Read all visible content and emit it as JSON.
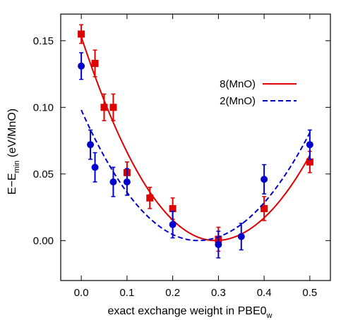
{
  "chart_data": {
    "type": "scatter",
    "xlabel": "exact exchange weight in PBE0",
    "xlabel_sub": "w",
    "ylabel": "E−E",
    "ylabel_sub": "min",
    "ylabel_unit": " (eV/MnO)",
    "xlim": [
      -0.045,
      0.545
    ],
    "ylim": [
      -0.03,
      0.17
    ],
    "xticks": [
      0.0,
      0.1,
      0.2,
      0.3,
      0.4,
      0.5
    ],
    "yticks": [
      0.0,
      0.05,
      0.1,
      0.15
    ],
    "xtick_labels": [
      "0.0",
      "0.1",
      "0.2",
      "0.3",
      "0.4",
      "0.5"
    ],
    "ytick_labels": [
      "0.00",
      "0.05",
      "0.10",
      "0.15"
    ],
    "grid": false,
    "legend_position": "top-right",
    "series": [
      {
        "name": "8(MnO)",
        "color": "#dd0000",
        "marker": "square",
        "fit_line": "solid",
        "points": [
          {
            "x": 0.0,
            "y": 0.155,
            "err": 0.007
          },
          {
            "x": 0.03,
            "y": 0.133,
            "err": 0.01
          },
          {
            "x": 0.05,
            "y": 0.1,
            "err": 0.01
          },
          {
            "x": 0.07,
            "y": 0.1,
            "err": 0.01
          },
          {
            "x": 0.1,
            "y": 0.051,
            "err": 0.008
          },
          {
            "x": 0.15,
            "y": 0.032,
            "err": 0.008
          },
          {
            "x": 0.2,
            "y": 0.024,
            "err": 0.008
          },
          {
            "x": 0.3,
            "y": 0.001,
            "err": 0.009
          },
          {
            "x": 0.4,
            "y": 0.024,
            "err": 0.009
          },
          {
            "x": 0.5,
            "y": 0.059,
            "err": 0.008
          }
        ],
        "fit": {
          "vertex_x": 0.293,
          "vertex_y": 0.0,
          "y_at_0": 0.153,
          "y_at_0_5": 0.064
        }
      },
      {
        "name": "2(MnO)",
        "color": "#0000cc",
        "marker": "circle",
        "fit_line": "dashed",
        "points": [
          {
            "x": 0.0,
            "y": 0.131,
            "err": 0.01
          },
          {
            "x": 0.02,
            "y": 0.072,
            "err": 0.011
          },
          {
            "x": 0.03,
            "y": 0.055,
            "err": 0.011
          },
          {
            "x": 0.07,
            "y": 0.044,
            "err": 0.011
          },
          {
            "x": 0.1,
            "y": 0.044,
            "err": 0.01
          },
          {
            "x": 0.2,
            "y": 0.012,
            "err": 0.01
          },
          {
            "x": 0.3,
            "y": -0.003,
            "err": 0.01
          },
          {
            "x": 0.35,
            "y": 0.003,
            "err": 0.01
          },
          {
            "x": 0.4,
            "y": 0.046,
            "err": 0.011
          },
          {
            "x": 0.5,
            "y": 0.072,
            "err": 0.011
          }
        ],
        "fit": {
          "vertex_x": 0.255,
          "vertex_y": 0.0,
          "y_at_0": 0.098,
          "y_at_0_5": 0.081
        }
      }
    ]
  }
}
